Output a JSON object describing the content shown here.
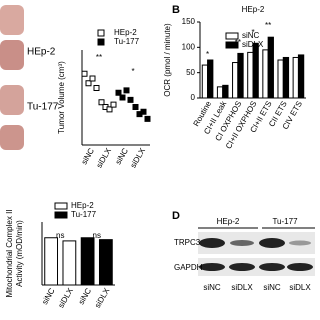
{
  "panel_labels": [
    "B",
    "D"
  ],
  "photo": {
    "labels": [
      "HEp-2",
      "Tu-177"
    ]
  },
  "chart_data": [
    {
      "type": "dot",
      "y_label": "Tumor Volume (cm³)",
      "categories": [
        "siNC",
        "siDLX",
        "siNC",
        "siDLX"
      ],
      "ylim": [
        0,
        2
      ],
      "series": [
        {
          "name": "HEp-2",
          "color": "#000000",
          "marker": "open",
          "values": [
            [
              1.5,
              1.3,
              1.4,
              1.2
            ],
            [
              0.9,
              0.8,
              0.75,
              0.85
            ],
            null,
            null
          ]
        },
        {
          "name": "Tu-177",
          "color": "#000000",
          "marker": "filled",
          "values": [
            null,
            null,
            [
              1.1,
              1.0,
              1.15,
              0.95
            ],
            [
              0.8,
              0.65,
              0.7,
              0.55
            ]
          ]
        }
      ],
      "annotations": [
        "**",
        "*"
      ]
    },
    {
      "type": "bar",
      "title": "HEp-2",
      "y_label": "OCR (pmol / minute)",
      "categories": [
        "Routine",
        "CI+II Leak",
        "CI OXPHOS",
        "CI+II OXPHOS",
        "CI+II ETS",
        "CII ETS",
        "CIV ETS"
      ],
      "ylim": [
        0,
        150
      ],
      "yticks": [
        0,
        50,
        100,
        150
      ],
      "series": [
        {
          "name": "siNC",
          "color": "#ffffff",
          "values": [
            65,
            22,
            70,
            90,
            95,
            75,
            80
          ]
        },
        {
          "name": "siDLX",
          "color": "#000000",
          "values": [
            75,
            25,
            88,
            108,
            120,
            80,
            85
          ]
        }
      ],
      "annotations": [
        "*",
        "**",
        "*",
        "**"
      ]
    },
    {
      "type": "bar",
      "y_label": [
        "Mitochondrial Complex II",
        "Activity (mOD/min)"
      ],
      "categories": [
        "siNC",
        "siDLX",
        "siNC",
        "siDLX"
      ],
      "ylim": [
        0,
        1
      ],
      "series": [
        {
          "name": "HEp-2",
          "color": "#ffffff",
          "values": [
            0.75,
            0.7,
            null,
            null
          ]
        },
        {
          "name": "Tu-177",
          "color": "#000000",
          "values": [
            null,
            null,
            0.75,
            0.72
          ]
        }
      ],
      "annotations": [
        "ns",
        "ns"
      ]
    }
  ],
  "blot": {
    "groups": [
      "HEp-2",
      "Tu-177"
    ],
    "rows": [
      "TRPC3",
      "GAPDH"
    ],
    "lanes": [
      "siNC",
      "siDLX",
      "siNC",
      "siDLX"
    ]
  }
}
